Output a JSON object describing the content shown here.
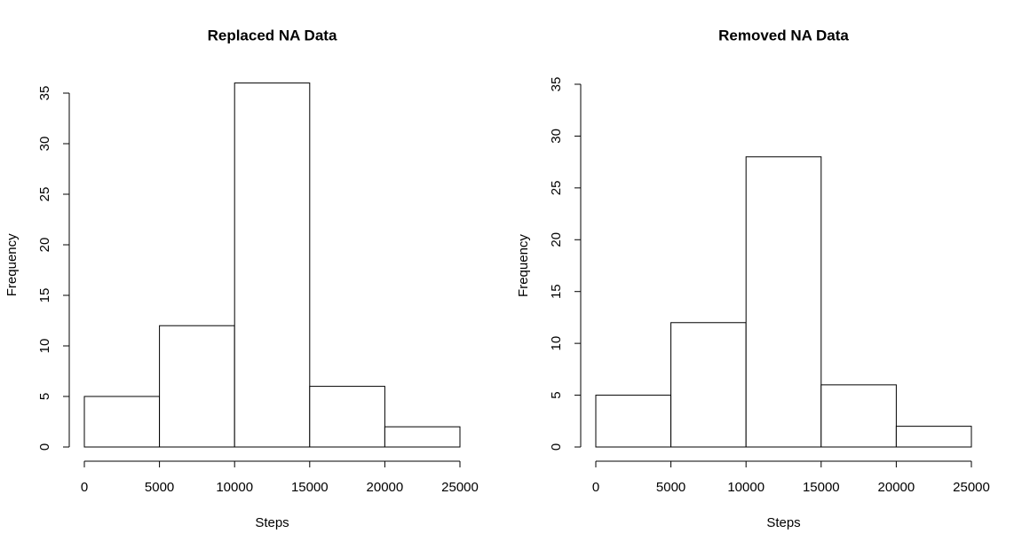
{
  "chart_data": [
    {
      "type": "histogram",
      "title": "Replaced NA Data",
      "x_label": "Steps",
      "y_label": "Frequency",
      "bins": [
        0,
        5000,
        10000,
        15000,
        20000,
        25000
      ],
      "counts": [
        5,
        12,
        36,
        6,
        2
      ],
      "color": "#ffffff",
      "xlim": [
        0,
        25000
      ],
      "xticks": [
        0,
        5000,
        10000,
        15000,
        20000,
        25000
      ],
      "ylim": [
        0,
        36
      ],
      "yticks": [
        0,
        5,
        10,
        15,
        20,
        25,
        30,
        35
      ]
    },
    {
      "type": "histogram",
      "title": "Removed NA Data",
      "x_label": "Steps",
      "y_label": "Frequency",
      "bins": [
        0,
        5000,
        10000,
        15000,
        20000,
        25000
      ],
      "counts": [
        5,
        12,
        28,
        6,
        2
      ],
      "color": "#ffffff",
      "xlim": [
        0,
        25000
      ],
      "xticks": [
        0,
        5000,
        10000,
        15000,
        20000,
        25000
      ],
      "ylim": [
        0,
        35
      ],
      "yticks": [
        0,
        5,
        10,
        15,
        20,
        25,
        30,
        35
      ]
    }
  ]
}
